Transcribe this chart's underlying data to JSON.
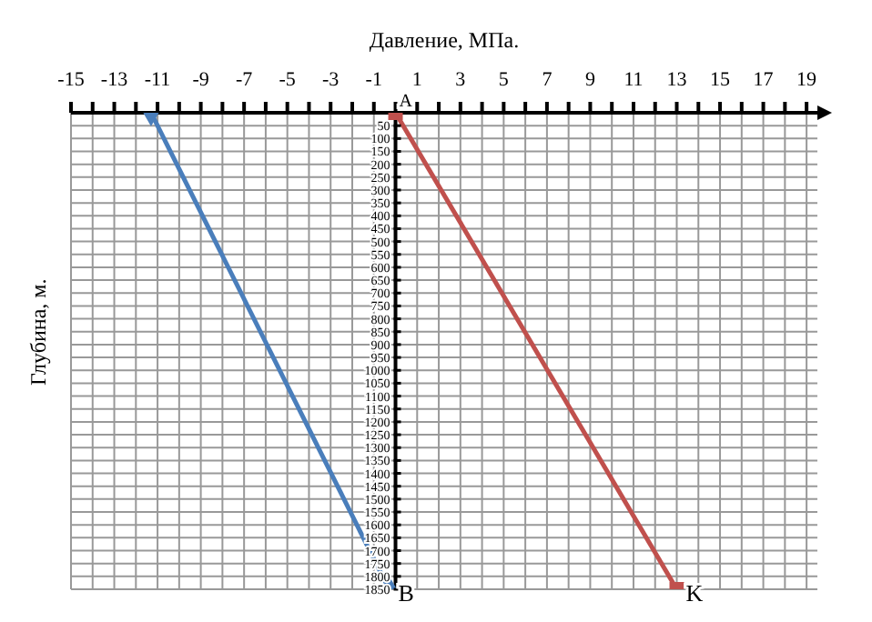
{
  "chart_data": {
    "type": "line",
    "xlabel": "Давление, МПа.",
    "ylabel": "Глубина, м.",
    "xlim": [
      -15,
      19.5
    ],
    "xticks": [
      -15,
      {
        "value": -14,
        "label": null
      },
      -13,
      {
        "value": -12,
        "label": null
      },
      -11,
      {
        "value": -10,
        "label": null
      },
      -9,
      {
        "value": -8,
        "label": null
      },
      -7,
      {
        "value": -6,
        "label": null
      },
      -5,
      {
        "value": -4,
        "label": null
      },
      -3,
      {
        "value": -2,
        "label": null
      },
      -1,
      {
        "value": 0,
        "label": null
      },
      1,
      {
        "value": 2,
        "label": null
      },
      3,
      {
        "value": 4,
        "label": null
      },
      5,
      {
        "value": 6,
        "label": null
      },
      7,
      {
        "value": 8,
        "label": null
      },
      9,
      {
        "value": 10,
        "label": null
      },
      11,
      {
        "value": 12,
        "label": null
      },
      13,
      {
        "value": 14,
        "label": null
      },
      15,
      {
        "value": 16,
        "label": null
      },
      17,
      {
        "value": 18,
        "label": null
      },
      19
    ],
    "ylim": [
      1850,
      0
    ],
    "yticks": [
      50,
      100,
      150,
      200,
      250,
      300,
      350,
      400,
      450,
      500,
      550,
      600,
      650,
      700,
      750,
      800,
      850,
      900,
      950,
      1000,
      1050,
      1100,
      1150,
      1200,
      1250,
      1300,
      1350,
      1400,
      1450,
      1500,
      1550,
      1600,
      1650,
      1700,
      1750,
      1800,
      1850
    ],
    "grid": true,
    "legend": false,
    "series": [
      {
        "color": "#4a7ebb",
        "x": [
          -11.3,
          -0.3
        ],
        "values": [
          0,
          1850
        ],
        "marker": "diamond"
      },
      {
        "color": "#c0504d",
        "x": [
          0,
          13
        ],
        "values": [
          0,
          1850
        ],
        "marker": "square"
      }
    ],
    "annotations": [
      {
        "text": "A",
        "x": 0,
        "y": 0
      },
      {
        "text": "B",
        "x": -0.3,
        "y": 1850
      },
      {
        "text": "K",
        "x": 13,
        "y": 1850
      }
    ]
  }
}
